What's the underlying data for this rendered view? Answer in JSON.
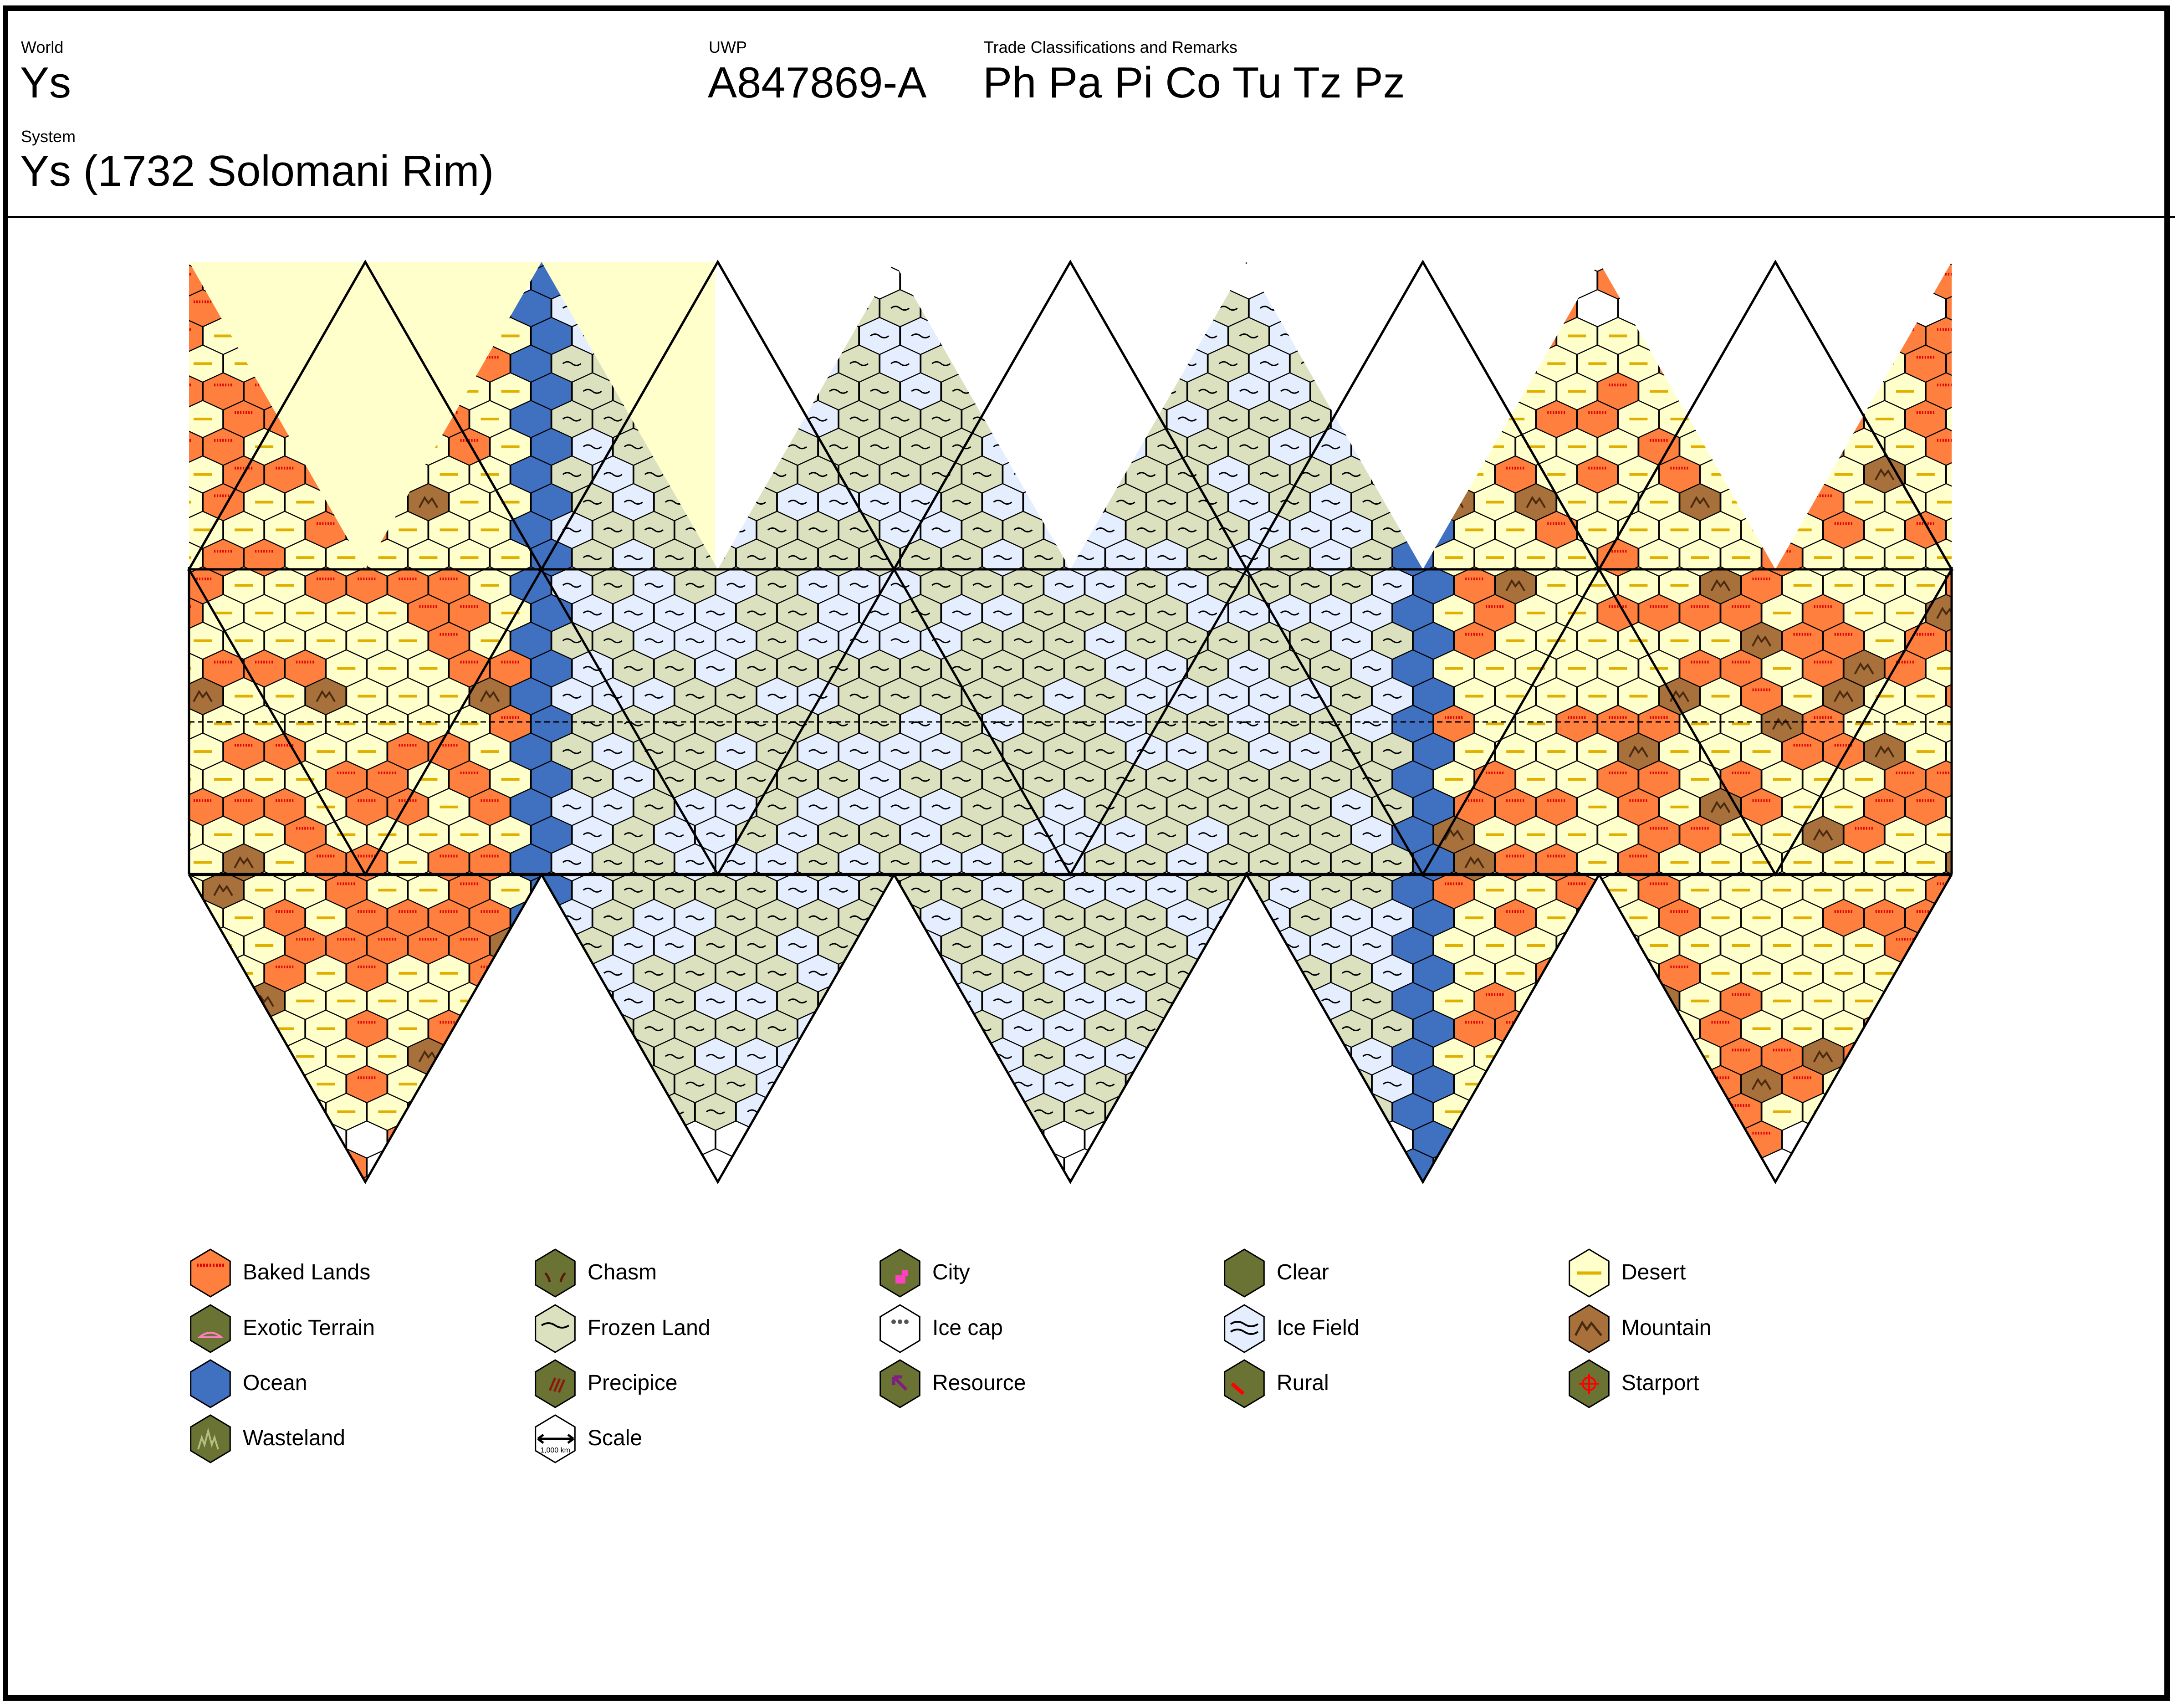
{
  "header": {
    "world_label": "World",
    "world_value": "Ys",
    "uwp_label": "UWP",
    "uwp_value": "A847869-A",
    "trade_label": "Trade Classifications and Remarks",
    "trade_value": "Ph Pa Pi Co Tu Tz Pz",
    "system_label": "System",
    "system_value": "Ys (1732 Solomani Rim)"
  },
  "colors": {
    "baked_lands": "#ff7f3f",
    "desert": "#ffffcc",
    "frozen_land": "#dbe1bf",
    "ice_field": "#e5eeff",
    "ice_cap": "#ffffff",
    "ocean": "#4070c0",
    "mountain": "#a8703a",
    "dark_green": "#6b7334",
    "city_pink": "#ff40c0",
    "resource_purple": "#7f1f7f",
    "starport_red": "#ff0000",
    "desert_stripe": "#e0b000",
    "baked_stripe": "#e00000"
  },
  "legend": [
    {
      "label": "Baked Lands",
      "icon": "baked-lands-icon",
      "fill": "#ff7f3f"
    },
    {
      "label": "Chasm",
      "icon": "chasm-icon",
      "fill": "#6b7334"
    },
    {
      "label": "City",
      "icon": "city-icon",
      "fill": "#6b7334"
    },
    {
      "label": "Clear",
      "icon": "clear-icon",
      "fill": "#6b7334"
    },
    {
      "label": "Desert",
      "icon": "desert-icon",
      "fill": "#ffffcc"
    },
    {
      "label": "Exotic Terrain",
      "icon": "exotic-terrain-icon",
      "fill": "#6b7334"
    },
    {
      "label": "Frozen Land",
      "icon": "frozen-land-icon",
      "fill": "#dbe1bf"
    },
    {
      "label": "Ice cap",
      "icon": "ice-cap-icon",
      "fill": "#ffffff"
    },
    {
      "label": "Ice Field",
      "icon": "ice-field-icon",
      "fill": "#e5eeff"
    },
    {
      "label": "Mountain",
      "icon": "mountain-icon",
      "fill": "#a8703a"
    },
    {
      "label": "Ocean",
      "icon": "ocean-icon",
      "fill": "#4070c0"
    },
    {
      "label": "Precipice",
      "icon": "precipice-icon",
      "fill": "#6b7334"
    },
    {
      "label": "Resource",
      "icon": "resource-icon",
      "fill": "#6b7334"
    },
    {
      "label": "Rural",
      "icon": "rural-icon",
      "fill": "#6b7334"
    },
    {
      "label": "Starport",
      "icon": "starport-icon",
      "fill": "#6b7334"
    },
    {
      "label": "Wasteland",
      "icon": "wasteland-icon",
      "fill": "#6b7334"
    },
    {
      "label": "Scale",
      "icon": "scale-icon",
      "fill": "#ffffff",
      "note": "1,000 km"
    }
  ]
}
